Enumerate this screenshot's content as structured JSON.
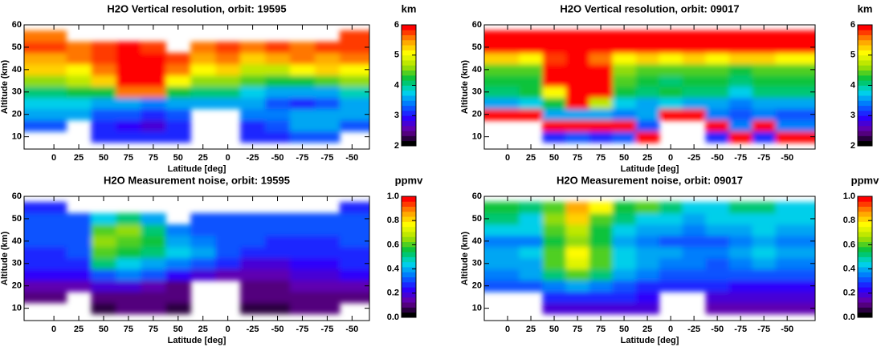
{
  "chart_data": [
    {
      "type": "heatmap",
      "title": "H2O Vertical resolution, orbit: 19595",
      "xlabel": "Latitude [deg]",
      "ylabel": "Altitude (km)",
      "colorbar_label": "km",
      "colormap": [
        "#000000",
        "#6a00a0",
        "#2a00ff",
        "#0070ff",
        "#00d8e8",
        "#00c040",
        "#a8e000",
        "#ffff00",
        "#ff9800",
        "#ff0000"
      ],
      "xlim": [
        -1.2,
        12.7
      ],
      "ylim": [
        4.5,
        60
      ],
      "zlim": [
        2,
        6
      ],
      "xticks": [
        {
          "value": 0,
          "label": "0"
        },
        {
          "value": 1,
          "label": "25"
        },
        {
          "value": 2,
          "label": "50"
        },
        {
          "value": 3,
          "label": "75"
        },
        {
          "value": 4,
          "label": "75"
        },
        {
          "value": 5,
          "label": "50"
        },
        {
          "value": 6,
          "label": "25"
        },
        {
          "value": 7,
          "label": "0"
        },
        {
          "value": 8,
          "label": "-25"
        },
        {
          "value": 9,
          "label": "-50"
        },
        {
          "value": 10,
          "label": "-75"
        },
        {
          "value": 11,
          "label": "-75"
        },
        {
          "value": 12,
          "label": "-50"
        }
      ],
      "yticks": [
        10,
        20,
        30,
        40,
        50,
        60
      ],
      "zticks": [
        2,
        3,
        4,
        5,
        6
      ],
      "x": [
        0,
        1,
        2,
        3,
        4,
        5,
        6,
        7,
        8,
        9,
        10,
        11,
        12
      ],
      "y": [
        10,
        15,
        20,
        25,
        30,
        35,
        40,
        45,
        50,
        55
      ],
      "z": [
        [
          null,
          null,
          3.0,
          3.0,
          3.0,
          3.0,
          null,
          null,
          3.0,
          3.0,
          3.2,
          3.2,
          null
        ],
        [
          3.2,
          null,
          3.0,
          2.9,
          2.8,
          3.0,
          null,
          null,
          3.0,
          3.2,
          3.6,
          3.6,
          3.2
        ],
        [
          3.6,
          3.6,
          3.3,
          3.2,
          3.0,
          3.2,
          null,
          null,
          3.4,
          3.4,
          3.6,
          3.5,
          3.6
        ],
        [
          3.8,
          3.8,
          3.6,
          3.5,
          3.4,
          3.5,
          3.6,
          3.6,
          3.5,
          3.2,
          3.0,
          3.2,
          3.6
        ],
        [
          4.0,
          4.2,
          4.3,
          5.5,
          5.5,
          4.2,
          4.0,
          4.0,
          3.8,
          3.6,
          3.5,
          3.6,
          3.9
        ],
        [
          4.6,
          4.8,
          5.2,
          6.0,
          6.0,
          5.0,
          4.6,
          4.6,
          4.4,
          4.2,
          4.2,
          4.4,
          4.6
        ],
        [
          5.2,
          5.0,
          5.5,
          6.0,
          6.0,
          5.6,
          5.0,
          5.2,
          4.8,
          4.8,
          5.0,
          5.2,
          5.0
        ],
        [
          5.4,
          5.6,
          5.8,
          6.0,
          6.0,
          5.8,
          5.4,
          5.6,
          5.2,
          5.4,
          5.6,
          5.4,
          5.6
        ],
        [
          5.8,
          5.6,
          5.8,
          6.0,
          5.8,
          null,
          5.6,
          5.8,
          5.6,
          5.8,
          5.6,
          5.8,
          5.8
        ],
        [
          5.6,
          null,
          null,
          null,
          null,
          null,
          null,
          null,
          null,
          null,
          null,
          null,
          5.8
        ]
      ]
    },
    {
      "type": "heatmap",
      "title": "H2O Vertical resolution, orbit: 09017",
      "xlabel": "Latitude [deg]",
      "ylabel": "Altitude (km)",
      "colorbar_label": "km",
      "colormap": [
        "#000000",
        "#6a00a0",
        "#2a00ff",
        "#0070ff",
        "#00d8e8",
        "#00c040",
        "#a8e000",
        "#ffff00",
        "#ff9800",
        "#ff0000"
      ],
      "xlim": [
        -1,
        13.2
      ],
      "ylim": [
        4.5,
        60
      ],
      "zlim": [
        2,
        6
      ],
      "xticks": [
        {
          "value": 0,
          "label": "0"
        },
        {
          "value": 1,
          "label": "25"
        },
        {
          "value": 2,
          "label": "50"
        },
        {
          "value": 3,
          "label": "75"
        },
        {
          "value": 4,
          "label": "75"
        },
        {
          "value": 5,
          "label": "50"
        },
        {
          "value": 6,
          "label": "25"
        },
        {
          "value": 7,
          "label": "0"
        },
        {
          "value": 8,
          "label": "-25"
        },
        {
          "value": 9,
          "label": "-50"
        },
        {
          "value": 10,
          "label": "-75"
        },
        {
          "value": 11,
          "label": "-75"
        },
        {
          "value": 12,
          "label": "-50"
        }
      ],
      "yticks": [
        10,
        20,
        30,
        40,
        50,
        60
      ],
      "zticks": [
        2,
        3,
        4,
        5,
        6
      ],
      "x": [
        0,
        1,
        2,
        3,
        4,
        5,
        6,
        7,
        8,
        9,
        10,
        11,
        12
      ],
      "y": [
        10,
        15,
        20,
        25,
        30,
        35,
        40,
        45,
        50,
        55
      ],
      "z": [
        [
          null,
          null,
          3.0,
          3.2,
          3.0,
          3.2,
          6.0,
          null,
          null,
          3.0,
          6.0,
          3.0,
          6.0
        ],
        [
          null,
          null,
          6.0,
          6.0,
          6.0,
          6.0,
          3.2,
          null,
          null,
          6.0,
          3.4,
          6.0,
          3.4
        ],
        [
          6.0,
          6.0,
          3.6,
          3.6,
          3.6,
          3.4,
          3.6,
          6.0,
          6.0,
          3.4,
          3.2,
          3.4,
          3.2
        ],
        [
          3.6,
          3.8,
          4.2,
          6.0,
          4.8,
          3.8,
          3.6,
          3.8,
          3.6,
          3.6,
          3.4,
          3.6,
          3.6
        ],
        [
          4.0,
          4.2,
          5.0,
          6.0,
          6.0,
          4.2,
          4.0,
          4.2,
          4.0,
          4.0,
          3.8,
          4.0,
          4.0
        ],
        [
          4.2,
          4.2,
          6.0,
          6.0,
          6.0,
          4.4,
          4.2,
          4.0,
          4.2,
          4.2,
          4.0,
          4.2,
          4.2
        ],
        [
          4.4,
          4.4,
          6.0,
          6.0,
          6.0,
          4.6,
          4.4,
          4.4,
          4.4,
          4.4,
          4.2,
          4.4,
          4.4
        ],
        [
          5.2,
          5.0,
          5.8,
          6.0,
          5.6,
          5.0,
          5.2,
          5.0,
          5.2,
          5.0,
          5.2,
          5.2,
          5.0
        ],
        [
          6.0,
          6.0,
          6.0,
          6.0,
          6.0,
          6.0,
          6.0,
          6.0,
          6.0,
          6.0,
          6.0,
          6.0,
          6.0
        ],
        [
          6.0,
          6.0,
          6.0,
          6.0,
          6.0,
          6.0,
          6.0,
          6.0,
          6.0,
          6.0,
          6.0,
          6.0,
          6.0
        ]
      ]
    },
    {
      "type": "heatmap",
      "title": "H2O Measurement noise, orbit: 19595",
      "xlabel": "Latitude [deg]",
      "ylabel": "Altitude (km)",
      "colorbar_label": "ppmv",
      "colormap": [
        "#000000",
        "#6a00a0",
        "#2a00ff",
        "#0070ff",
        "#00d8e8",
        "#00c040",
        "#a8e000",
        "#ffff00",
        "#ff9800",
        "#ff0000"
      ],
      "xlim": [
        -1.2,
        12.7
      ],
      "ylim": [
        4.5,
        60
      ],
      "zlim": [
        0,
        1
      ],
      "xticks": [
        {
          "value": 0,
          "label": "0"
        },
        {
          "value": 1,
          "label": "25"
        },
        {
          "value": 2,
          "label": "50"
        },
        {
          "value": 3,
          "label": "75"
        },
        {
          "value": 4,
          "label": "75"
        },
        {
          "value": 5,
          "label": "50"
        },
        {
          "value": 6,
          "label": "25"
        },
        {
          "value": 7,
          "label": "0"
        },
        {
          "value": 8,
          "label": "-25"
        },
        {
          "value": 9,
          "label": "-50"
        },
        {
          "value": 10,
          "label": "-75"
        },
        {
          "value": 11,
          "label": "-75"
        },
        {
          "value": 12,
          "label": "-50"
        }
      ],
      "yticks": [
        10,
        20,
        30,
        40,
        50,
        60
      ],
      "zticks": [
        {
          "value": 0,
          "label": "0.0"
        },
        0.2,
        0.4,
        0.6,
        0.8,
        {
          "value": 1,
          "label": "1.0"
        }
      ],
      "x": [
        0,
        1,
        2,
        3,
        4,
        5,
        6,
        7,
        8,
        9,
        10,
        11,
        12
      ],
      "y": [
        10,
        15,
        20,
        25,
        30,
        35,
        40,
        45,
        50,
        55
      ],
      "z": [
        [
          null,
          null,
          0.08,
          0.1,
          0.1,
          0.08,
          null,
          null,
          0.08,
          0.08,
          0.1,
          0.1,
          null
        ],
        [
          0.1,
          null,
          0.12,
          0.12,
          0.1,
          0.1,
          null,
          null,
          0.1,
          0.1,
          0.12,
          0.12,
          0.12
        ],
        [
          0.15,
          0.15,
          0.2,
          0.18,
          0.15,
          0.12,
          null,
          null,
          0.12,
          0.12,
          0.14,
          0.15,
          0.15
        ],
        [
          0.22,
          0.22,
          0.3,
          0.35,
          0.3,
          0.22,
          0.18,
          0.15,
          0.15,
          0.15,
          0.18,
          0.2,
          0.22
        ],
        [
          0.25,
          0.26,
          0.5,
          0.45,
          0.4,
          0.35,
          0.3,
          0.25,
          0.2,
          0.2,
          0.22,
          0.22,
          0.25
        ],
        [
          0.28,
          0.3,
          0.6,
          0.55,
          0.5,
          0.42,
          0.38,
          0.33,
          0.28,
          0.25,
          0.25,
          0.25,
          0.28
        ],
        [
          0.3,
          0.3,
          0.65,
          0.62,
          0.55,
          0.4,
          0.35,
          0.32,
          0.32,
          0.28,
          0.28,
          0.28,
          0.3
        ],
        [
          0.3,
          0.32,
          0.6,
          0.65,
          0.5,
          0.35,
          0.32,
          0.3,
          0.3,
          0.3,
          0.3,
          0.3,
          0.3
        ],
        [
          0.32,
          0.32,
          0.42,
          0.5,
          0.4,
          null,
          0.3,
          0.3,
          0.3,
          0.3,
          0.32,
          0.3,
          0.3
        ],
        [
          0.28,
          null,
          null,
          null,
          null,
          null,
          null,
          null,
          null,
          null,
          null,
          null,
          0.28
        ]
      ]
    },
    {
      "type": "heatmap",
      "title": "H2O Measurement noise, orbit: 09017",
      "xlabel": "Latitude [deg]",
      "ylabel": "Altitude (km)",
      "colorbar_label": "ppmv",
      "colormap": [
        "#000000",
        "#6a00a0",
        "#2a00ff",
        "#0070ff",
        "#00d8e8",
        "#00c040",
        "#a8e000",
        "#ffff00",
        "#ff9800",
        "#ff0000"
      ],
      "xlim": [
        -1,
        13.2
      ],
      "ylim": [
        4.5,
        60
      ],
      "zlim": [
        0,
        1
      ],
      "xticks": [
        {
          "value": 0,
          "label": "0"
        },
        {
          "value": 1,
          "label": "25"
        },
        {
          "value": 2,
          "label": "50"
        },
        {
          "value": 3,
          "label": "75"
        },
        {
          "value": 4,
          "label": "75"
        },
        {
          "value": 5,
          "label": "50"
        },
        {
          "value": 6,
          "label": "25"
        },
        {
          "value": 7,
          "label": "0"
        },
        {
          "value": 8,
          "label": "-25"
        },
        {
          "value": 9,
          "label": "-50"
        },
        {
          "value": 10,
          "label": "-75"
        },
        {
          "value": 11,
          "label": "-75"
        },
        {
          "value": 12,
          "label": "-50"
        }
      ],
      "yticks": [
        10,
        20,
        30,
        40,
        50,
        60
      ],
      "zticks": [
        {
          "value": 0,
          "label": "0.0"
        },
        0.2,
        0.4,
        0.6,
        0.8,
        {
          "value": 1,
          "label": "1.0"
        }
      ],
      "x": [
        0,
        1,
        2,
        3,
        4,
        5,
        6,
        7,
        8,
        9,
        10,
        11,
        12
      ],
      "y": [
        10,
        15,
        20,
        25,
        30,
        35,
        40,
        45,
        50,
        55
      ],
      "z": [
        [
          null,
          null,
          0.2,
          0.2,
          0.2,
          0.2,
          0.2,
          null,
          null,
          0.15,
          0.15,
          0.15,
          0.15
        ],
        [
          null,
          null,
          0.25,
          0.25,
          0.25,
          0.25,
          0.22,
          null,
          null,
          0.2,
          0.2,
          0.2,
          0.2
        ],
        [
          0.3,
          0.3,
          0.35,
          0.4,
          0.35,
          0.3,
          0.28,
          0.28,
          0.28,
          0.25,
          0.22,
          0.22,
          0.22
        ],
        [
          0.35,
          0.38,
          0.5,
          0.6,
          0.5,
          0.38,
          0.35,
          0.32,
          0.32,
          0.3,
          0.3,
          0.32,
          0.3
        ],
        [
          0.38,
          0.4,
          0.6,
          0.72,
          0.6,
          0.42,
          0.38,
          0.35,
          0.35,
          0.32,
          0.35,
          0.38,
          0.35
        ],
        [
          0.4,
          0.42,
          0.62,
          0.78,
          0.62,
          0.45,
          0.4,
          0.38,
          0.35,
          0.35,
          0.4,
          0.42,
          0.38
        ],
        [
          0.35,
          0.35,
          0.55,
          0.65,
          0.55,
          0.4,
          0.35,
          0.3,
          0.3,
          0.3,
          0.35,
          0.38,
          0.35
        ],
        [
          0.45,
          0.42,
          0.6,
          0.7,
          0.58,
          0.45,
          0.4,
          0.38,
          0.35,
          0.38,
          0.4,
          0.42,
          0.4
        ],
        [
          0.5,
          0.45,
          0.65,
          0.8,
          0.62,
          0.5,
          0.45,
          0.42,
          0.4,
          0.42,
          0.45,
          0.45,
          0.42
        ],
        [
          0.55,
          0.5,
          0.6,
          0.85,
          0.75,
          0.55,
          0.6,
          0.5,
          0.45,
          0.45,
          0.5,
          0.5,
          0.45
        ]
      ]
    }
  ]
}
